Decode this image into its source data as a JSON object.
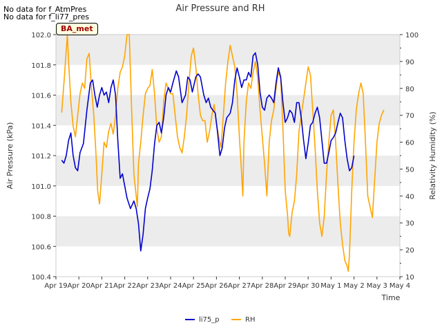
{
  "notes": [
    "No data for f_AtmPres",
    "No data for f_li77_pres"
  ],
  "badge": "BA_met",
  "chart_data": {
    "type": "line",
    "title": "Air Pressure and RH",
    "xlabel": "Time",
    "ylabel_left": "Air Pressure (kPa)",
    "ylabel_right": "Relativity Humidity (%)",
    "x_ticks": [
      "Apr 19",
      "Apr 20",
      "Apr 21",
      "Apr 22",
      "Apr 23",
      "Apr 24",
      "Apr 25",
      "Apr 26",
      "Apr 27",
      "Apr 28",
      "Apr 29",
      "Apr 30",
      "May 1",
      "May 2",
      "May 3",
      "May 4"
    ],
    "ylim_left": [
      100.4,
      102.0
    ],
    "ylim_right": [
      10,
      100
    ],
    "y_ticks_left": [
      "100.4",
      "100.6",
      "100.8",
      "101.0",
      "101.2",
      "101.4",
      "101.6",
      "101.8",
      "102.0"
    ],
    "y_ticks_right": [
      "10",
      "20",
      "30",
      "40",
      "50",
      "60",
      "70",
      "80",
      "90",
      "100"
    ],
    "grid": "horizontal bands",
    "legend_position": "bottom-center",
    "series": [
      {
        "name": "li75_p",
        "color": "#0000cc",
        "axis": "left",
        "points": [
          [
            0.25,
            101.17
          ],
          [
            0.35,
            101.15
          ],
          [
            0.45,
            101.2
          ],
          [
            0.55,
            101.3
          ],
          [
            0.65,
            101.35
          ],
          [
            0.75,
            101.2
          ],
          [
            0.85,
            101.12
          ],
          [
            0.95,
            101.1
          ],
          [
            1.05,
            101.22
          ],
          [
            1.2,
            101.28
          ],
          [
            1.35,
            101.5
          ],
          [
            1.5,
            101.68
          ],
          [
            1.6,
            101.7
          ],
          [
            1.7,
            101.6
          ],
          [
            1.8,
            101.52
          ],
          [
            1.9,
            101.6
          ],
          [
            2.0,
            101.65
          ],
          [
            2.1,
            101.6
          ],
          [
            2.2,
            101.62
          ],
          [
            2.3,
            101.55
          ],
          [
            2.4,
            101.65
          ],
          [
            2.5,
            101.7
          ],
          [
            2.6,
            101.6
          ],
          [
            2.7,
            101.3
          ],
          [
            2.8,
            101.05
          ],
          [
            2.9,
            101.08
          ],
          [
            3.0,
            101.0
          ],
          [
            3.1,
            100.92
          ],
          [
            3.25,
            100.85
          ],
          [
            3.4,
            100.9
          ],
          [
            3.5,
            100.85
          ],
          [
            3.6,
            100.75
          ],
          [
            3.7,
            100.57
          ],
          [
            3.8,
            100.68
          ],
          [
            3.9,
            100.85
          ],
          [
            4.0,
            100.92
          ],
          [
            4.1,
            100.98
          ],
          [
            4.2,
            101.1
          ],
          [
            4.3,
            101.28
          ],
          [
            4.4,
            101.4
          ],
          [
            4.5,
            101.42
          ],
          [
            4.6,
            101.35
          ],
          [
            4.7,
            101.45
          ],
          [
            4.8,
            101.6
          ],
          [
            4.9,
            101.65
          ],
          [
            5.0,
            101.62
          ],
          [
            5.1,
            101.68
          ],
          [
            5.25,
            101.76
          ],
          [
            5.35,
            101.72
          ],
          [
            5.5,
            101.55
          ],
          [
            5.65,
            101.6
          ],
          [
            5.75,
            101.72
          ],
          [
            5.85,
            101.7
          ],
          [
            5.95,
            101.62
          ],
          [
            6.1,
            101.72
          ],
          [
            6.2,
            101.74
          ],
          [
            6.3,
            101.72
          ],
          [
            6.45,
            101.6
          ],
          [
            6.55,
            101.55
          ],
          [
            6.65,
            101.58
          ],
          [
            6.75,
            101.52
          ],
          [
            6.85,
            101.5
          ],
          [
            6.95,
            101.48
          ],
          [
            7.05,
            101.35
          ],
          [
            7.15,
            101.2
          ],
          [
            7.25,
            101.25
          ],
          [
            7.35,
            101.38
          ],
          [
            7.45,
            101.45
          ],
          [
            7.6,
            101.48
          ],
          [
            7.7,
            101.55
          ],
          [
            7.8,
            101.7
          ],
          [
            7.9,
            101.78
          ],
          [
            8.0,
            101.72
          ],
          [
            8.1,
            101.65
          ],
          [
            8.2,
            101.7
          ],
          [
            8.3,
            101.7
          ],
          [
            8.4,
            101.75
          ],
          [
            8.5,
            101.72
          ],
          [
            8.6,
            101.86
          ],
          [
            8.7,
            101.88
          ],
          [
            8.8,
            101.8
          ],
          [
            8.9,
            101.62
          ],
          [
            9.0,
            101.52
          ],
          [
            9.1,
            101.5
          ],
          [
            9.2,
            101.58
          ],
          [
            9.3,
            101.6
          ],
          [
            9.4,
            101.58
          ],
          [
            9.5,
            101.55
          ],
          [
            9.6,
            101.68
          ],
          [
            9.7,
            101.78
          ],
          [
            9.8,
            101.72
          ],
          [
            9.9,
            101.55
          ],
          [
            10.0,
            101.42
          ],
          [
            10.1,
            101.45
          ],
          [
            10.2,
            101.5
          ],
          [
            10.3,
            101.48
          ],
          [
            10.4,
            101.42
          ],
          [
            10.5,
            101.55
          ],
          [
            10.6,
            101.55
          ],
          [
            10.7,
            101.45
          ],
          [
            10.8,
            101.3
          ],
          [
            10.9,
            101.18
          ],
          [
            11.0,
            101.28
          ],
          [
            11.1,
            101.4
          ],
          [
            11.2,
            101.42
          ],
          [
            11.3,
            101.48
          ],
          [
            11.4,
            101.52
          ],
          [
            11.5,
            101.45
          ],
          [
            11.6,
            101.3
          ],
          [
            11.7,
            101.15
          ],
          [
            11.8,
            101.15
          ],
          [
            11.9,
            101.22
          ],
          [
            12.0,
            101.3
          ],
          [
            12.1,
            101.32
          ],
          [
            12.2,
            101.35
          ],
          [
            12.3,
            101.42
          ],
          [
            12.4,
            101.48
          ],
          [
            12.5,
            101.45
          ],
          [
            12.6,
            101.3
          ],
          [
            12.7,
            101.18
          ],
          [
            12.8,
            101.1
          ],
          [
            12.9,
            101.12
          ],
          [
            13.0,
            101.2
          ]
        ]
      },
      {
        "name": "RH",
        "color": "#ffa500",
        "axis": "right",
        "points": [
          [
            0.25,
            71
          ],
          [
            0.35,
            82
          ],
          [
            0.45,
            94
          ],
          [
            0.5,
            100
          ],
          [
            0.55,
            90
          ],
          [
            0.65,
            75
          ],
          [
            0.75,
            66
          ],
          [
            0.85,
            62
          ],
          [
            0.95,
            70
          ],
          [
            1.05,
            78
          ],
          [
            1.15,
            82
          ],
          [
            1.25,
            80
          ],
          [
            1.35,
            91
          ],
          [
            1.45,
            93
          ],
          [
            1.55,
            80
          ],
          [
            1.65,
            70
          ],
          [
            1.75,
            55
          ],
          [
            1.82,
            42
          ],
          [
            1.9,
            37
          ],
          [
            2.0,
            48
          ],
          [
            2.1,
            60
          ],
          [
            2.2,
            58
          ],
          [
            2.3,
            64
          ],
          [
            2.4,
            67
          ],
          [
            2.5,
            63
          ],
          [
            2.6,
            70
          ],
          [
            2.7,
            80
          ],
          [
            2.8,
            86
          ],
          [
            2.9,
            88
          ],
          [
            3.0,
            92
          ],
          [
            3.1,
            100
          ],
          [
            3.2,
            100
          ],
          [
            3.3,
            72
          ],
          [
            3.4,
            48
          ],
          [
            3.5,
            40
          ],
          [
            3.55,
            36
          ],
          [
            3.6,
            52
          ],
          [
            3.7,
            60
          ],
          [
            3.8,
            70
          ],
          [
            3.9,
            78
          ],
          [
            4.0,
            80
          ],
          [
            4.1,
            81
          ],
          [
            4.2,
            87
          ],
          [
            4.3,
            78
          ],
          [
            4.4,
            65
          ],
          [
            4.5,
            60
          ],
          [
            4.6,
            62
          ],
          [
            4.7,
            75
          ],
          [
            4.8,
            82
          ],
          [
            4.9,
            80
          ],
          [
            5.0,
            78
          ],
          [
            5.1,
            78
          ],
          [
            5.2,
            70
          ],
          [
            5.3,
            62
          ],
          [
            5.4,
            58
          ],
          [
            5.5,
            56
          ],
          [
            5.6,
            62
          ],
          [
            5.7,
            70
          ],
          [
            5.8,
            82
          ],
          [
            5.9,
            92
          ],
          [
            6.0,
            95
          ],
          [
            6.1,
            88
          ],
          [
            6.2,
            78
          ],
          [
            6.3,
            70
          ],
          [
            6.4,
            68
          ],
          [
            6.5,
            68
          ],
          [
            6.6,
            60
          ],
          [
            6.7,
            64
          ],
          [
            6.8,
            70
          ],
          [
            6.9,
            74
          ],
          [
            7.0,
            67
          ],
          [
            7.1,
            62
          ],
          [
            7.2,
            58
          ],
          [
            7.3,
            70
          ],
          [
            7.4,
            82
          ],
          [
            7.5,
            90
          ],
          [
            7.6,
            96
          ],
          [
            7.7,
            92
          ],
          [
            7.8,
            88
          ],
          [
            7.9,
            78
          ],
          [
            8.0,
            62
          ],
          [
            8.1,
            48
          ],
          [
            8.15,
            40
          ],
          [
            8.2,
            60
          ],
          [
            8.3,
            75
          ],
          [
            8.4,
            82
          ],
          [
            8.5,
            80
          ],
          [
            8.6,
            86
          ],
          [
            8.7,
            90
          ],
          [
            8.8,
            84
          ],
          [
            8.9,
            72
          ],
          [
            9.0,
            62
          ],
          [
            9.1,
            52
          ],
          [
            9.2,
            40
          ],
          [
            9.3,
            60
          ],
          [
            9.4,
            68
          ],
          [
            9.5,
            72
          ],
          [
            9.6,
            80
          ],
          [
            9.7,
            86
          ],
          [
            9.8,
            84
          ],
          [
            9.9,
            65
          ],
          [
            10.0,
            42
          ],
          [
            10.1,
            33
          ],
          [
            10.15,
            26
          ],
          [
            10.2,
            25
          ],
          [
            10.3,
            34
          ],
          [
            10.4,
            38
          ],
          [
            10.5,
            48
          ],
          [
            10.6,
            64
          ],
          [
            10.7,
            70
          ],
          [
            10.8,
            76
          ],
          [
            10.9,
            82
          ],
          [
            11.0,
            88
          ],
          [
            11.1,
            85
          ],
          [
            11.2,
            72
          ],
          [
            11.3,
            58
          ],
          [
            11.4,
            42
          ],
          [
            11.5,
            30
          ],
          [
            11.6,
            25
          ],
          [
            11.7,
            32
          ],
          [
            11.8,
            48
          ],
          [
            11.9,
            60
          ],
          [
            12.0,
            70
          ],
          [
            12.1,
            72
          ],
          [
            12.2,
            60
          ],
          [
            12.3,
            44
          ],
          [
            12.4,
            30
          ],
          [
            12.5,
            22
          ],
          [
            12.6,
            16
          ],
          [
            12.7,
            14
          ],
          [
            12.75,
            12
          ],
          [
            12.8,
            18
          ],
          [
            12.9,
            42
          ],
          [
            13.0,
            60
          ],
          [
            13.1,
            72
          ],
          [
            13.2,
            78
          ],
          [
            13.3,
            82
          ],
          [
            13.4,
            78
          ],
          [
            13.5,
            60
          ],
          [
            13.6,
            40
          ],
          [
            13.7,
            36
          ],
          [
            13.8,
            32
          ],
          [
            13.9,
            46
          ],
          [
            14.0,
            60
          ],
          [
            14.1,
            67
          ],
          [
            14.2,
            70
          ],
          [
            14.3,
            72
          ]
        ]
      }
    ]
  }
}
